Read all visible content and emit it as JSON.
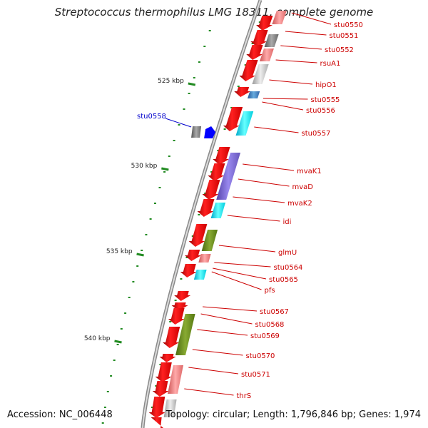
{
  "title": "Streptococcus thermophilus LMG 18311, complete genome",
  "footer": {
    "accession": "Accession: NC_006448",
    "summary": "Topology: circular; Length: 1,796,846 bp; Genes: 1,974"
  },
  "scale": {
    "ticks": [
      "525 kbp",
      "530 kbp",
      "535 kbp",
      "540 kbp"
    ]
  },
  "genes_right": [
    "stu0550",
    "stu0551",
    "stu0552",
    "rsuA1",
    "hipO1",
    "stu0555",
    "stu0556",
    "stu0557",
    "mvaK1",
    "mvaD",
    "mvaK2",
    "idi",
    "glmU",
    "stu0564",
    "stu0565",
    "pfs",
    "stu0567",
    "stu0568",
    "stu0569",
    "stu0570",
    "stu0571",
    "thrS"
  ],
  "genes_left": [
    "stu0558"
  ],
  "colors": {
    "forward": "#ff0000",
    "reverse_feature": "#0000ff",
    "label_right": "#cc0000",
    "label_left": "#0000cc",
    "backbone": "#999999",
    "scale": "#228b22"
  }
}
